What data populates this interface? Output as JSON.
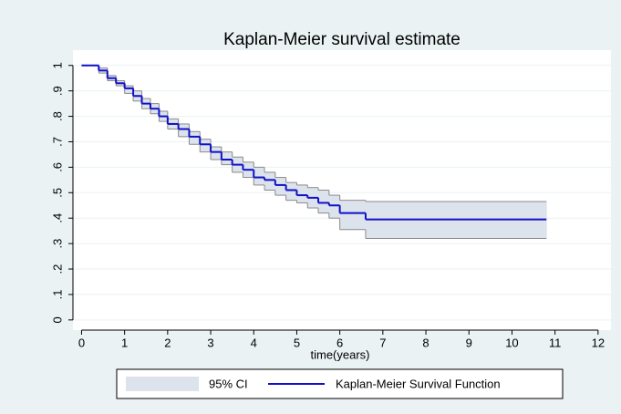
{
  "chart_data": {
    "type": "step",
    "title": "Kaplan-Meier survival estimate",
    "x_label": "time(years)",
    "x": [
      0,
      0.2,
      0.4,
      0.6,
      0.8,
      1.0,
      1.2,
      1.4,
      1.6,
      1.8,
      2.0,
      2.25,
      2.5,
      2.75,
      3.0,
      3.25,
      3.5,
      3.75,
      4.0,
      4.25,
      4.5,
      4.75,
      5.0,
      5.25,
      5.5,
      5.75,
      6.0,
      6.6,
      10.8
    ],
    "series": [
      {
        "name": "95% CI",
        "color": "#dde3ec",
        "edge_color": "#8a8a8a",
        "upper": [
          1,
          1,
          0.99,
          0.96,
          0.94,
          0.92,
          0.9,
          0.87,
          0.85,
          0.82,
          0.79,
          0.77,
          0.74,
          0.71,
          0.68,
          0.66,
          0.64,
          0.62,
          0.6,
          0.58,
          0.56,
          0.54,
          0.53,
          0.52,
          0.51,
          0.49,
          0.47,
          0.465,
          0.465
        ],
        "lower": [
          1,
          1,
          0.97,
          0.94,
          0.92,
          0.89,
          0.86,
          0.83,
          0.81,
          0.78,
          0.75,
          0.72,
          0.69,
          0.66,
          0.63,
          0.61,
          0.58,
          0.56,
          0.53,
          0.51,
          0.49,
          0.47,
          0.46,
          0.44,
          0.42,
          0.4,
          0.355,
          0.32,
          0.32
        ]
      },
      {
        "name": "Kaplan-Meier Survival Function",
        "color": "#1010c8",
        "values": [
          1,
          1,
          0.98,
          0.95,
          0.93,
          0.91,
          0.88,
          0.85,
          0.83,
          0.8,
          0.77,
          0.75,
          0.72,
          0.69,
          0.66,
          0.63,
          0.61,
          0.59,
          0.56,
          0.55,
          0.53,
          0.51,
          0.49,
          0.48,
          0.46,
          0.45,
          0.42,
          0.395,
          0.395
        ]
      }
    ],
    "xlim": [
      -0.2,
      12.3
    ],
    "xticks": [
      0,
      1,
      2,
      3,
      4,
      5,
      6,
      7,
      8,
      9,
      10,
      11,
      12
    ],
    "ylim": [
      -0.04,
      1.06
    ],
    "yticks": [
      0,
      {
        "value": 0.1,
        "label": ".1"
      },
      {
        "value": 0.2,
        "label": ".2"
      },
      {
        "value": 0.3,
        "label": ".3"
      },
      {
        "value": 0.4,
        "label": ".4"
      },
      {
        "value": 0.5,
        "label": ".5"
      },
      {
        "value": 0.6,
        "label": ".6"
      },
      {
        "value": 0.7,
        "label": ".7"
      },
      {
        "value": 0.8,
        "label": ".8"
      },
      {
        "value": 0.9,
        "label": ".9"
      },
      1
    ],
    "grid": true,
    "legend": "bottom"
  }
}
